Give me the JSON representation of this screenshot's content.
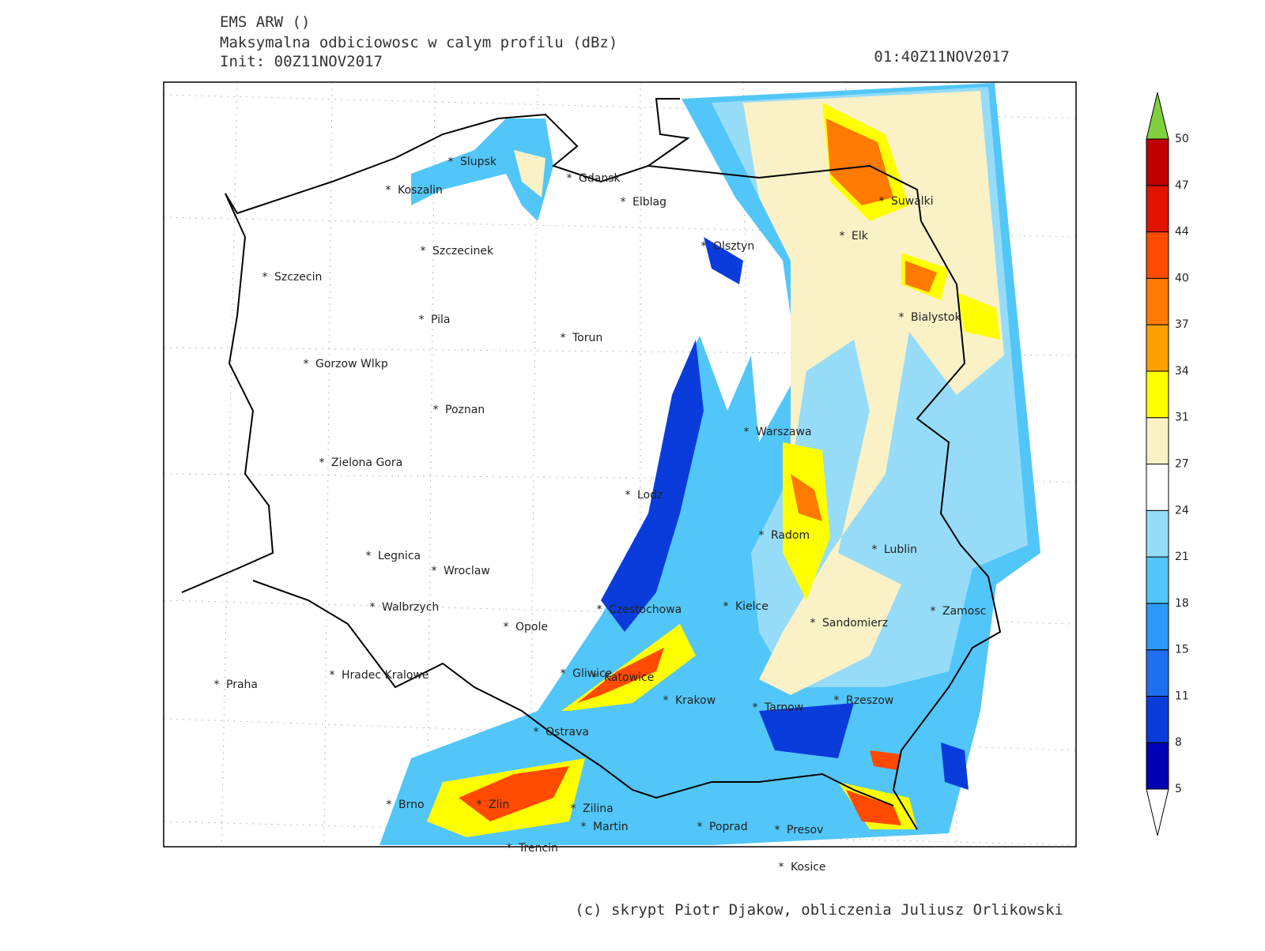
{
  "header": {
    "title": "EMS ARW ()",
    "subtitle": "Maksymalna odbiciowosc w calym profilu (dBz)",
    "init": "Init: 00Z11NOV2017",
    "valid_time": "01:40Z11NOV2017"
  },
  "cities": [
    "Slupsk",
    "Koszalin",
    "Gdansk",
    "Elblag",
    "Suwalki",
    "Elk",
    "Olsztyn",
    "Szczecinek",
    "Szczecin",
    "Pila",
    "Bialystok",
    "Torun",
    "Gorzow Wlkp",
    "Poznan",
    "Warszawa",
    "Zielona Gora",
    "Lodz",
    "Radom",
    "Lublin",
    "Legnica",
    "Wroclaw",
    "Walbrzych",
    "Czestochowa",
    "Kielce",
    "Zamosc",
    "Opole",
    "Sandomierz",
    "Hradec Kralowe",
    "Gliwice",
    "Katowice",
    "Praha",
    "Krakow",
    "Tarnow",
    "Rzeszow",
    "Ostrava",
    "Brno",
    "Zlin",
    "Zilina",
    "Martin",
    "Poprad",
    "Presov",
    "Trencin",
    "Kosice"
  ],
  "colorbar": {
    "levels": [
      5,
      8,
      11,
      15,
      18,
      21,
      24,
      27,
      31,
      34,
      37,
      40,
      44,
      47,
      50
    ],
    "colors": [
      "#0000b4",
      "#0a3cdc",
      "#1e6ef0",
      "#2c9af4",
      "#52c6f8",
      "#96dcf8",
      "#ffffff",
      "#fbf1c6",
      "#ffff00",
      "#ffa000",
      "#ff7a00",
      "#ff4a00",
      "#e01400",
      "#c00000"
    ],
    "under_color": "#ffffff",
    "over_color": "#80d040"
  },
  "footer": "(c) skrypt Piotr Djakow, obliczenia Juliusz Orlikowski"
}
